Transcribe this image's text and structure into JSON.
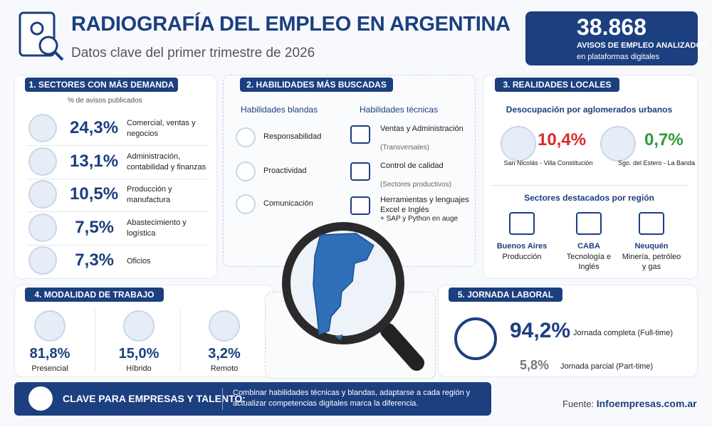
{
  "header": {
    "title": "RADIOGRAFÍA DEL EMPLEO EN ARGENTINA",
    "subtitle": "Datos clave del primer trimestre de 2026"
  },
  "stat": {
    "value": "38.868",
    "label": "AVISOS DE EMPLEO ANALIZADOS",
    "sublabel": "en plataformas digitales"
  },
  "sectors": {
    "title": "1. SECTORES CON MÁS DEMANDA",
    "note": "% de avisos publicados",
    "items": [
      {
        "value": "24,3%",
        "label": "Comercial, ventas y negocios"
      },
      {
        "value": "13,1%",
        "label": "Administración, contabilidad y finanzas"
      },
      {
        "value": "10,5%",
        "label": "Producción y manufactura"
      },
      {
        "value": "7,5%",
        "label": "Abastecimiento y logística"
      },
      {
        "value": "7,3%",
        "label": "Oficios"
      }
    ]
  },
  "skills": {
    "title": "2. HABILIDADES MÁS BUSCADAS",
    "soft": {
      "heading": "Habilidades blandas",
      "items": [
        "Responsabilidad",
        "Proactividad",
        "Comunicación"
      ]
    },
    "technical": {
      "heading": "Habilidades técnicas",
      "items": [
        {
          "label": "Ventas y Administración",
          "note": "(Transversales)"
        },
        {
          "label": "Control de calidad",
          "note": "(Sectores productivos)"
        },
        {
          "label": "Herramientas y lenguajes Excel e Inglés",
          "note": "+ SAP y Python en auge"
        }
      ]
    }
  },
  "local": {
    "title": "3. REALIDADES LOCALES",
    "unemployment": {
      "heading": "Desocupación por aglomerados urbanos",
      "items": [
        {
          "value": "10,4%",
          "place": "San Nicolás - Villa Constitución"
        },
        {
          "value": "0,7%",
          "place": "Sgo. del Estero - La Banda"
        }
      ]
    },
    "regions": {
      "heading": "Sectores destacados por región",
      "items": [
        {
          "region": "Buenos Aires",
          "sector": "Producción"
        },
        {
          "region": "CABA",
          "sector": "Tecnología e Inglés"
        },
        {
          "region": "Neuquén",
          "sector": "Minería, petróleo y gas"
        }
      ]
    }
  },
  "modality": {
    "title": "4. MODALIDAD DE TRABAJO",
    "items": [
      {
        "value": "81,8%",
        "label": "Presencial"
      },
      {
        "value": "15,0%",
        "label": "Híbrido"
      },
      {
        "value": "3,2%",
        "label": "Remoto"
      }
    ]
  },
  "schedule": {
    "title": "5. JORNADA LABORAL",
    "items": [
      {
        "value": "94,2%",
        "label": "Jornada completa (Full-time)"
      },
      {
        "value": "5,8%",
        "label": "Jornada parcial (Part-time)"
      }
    ]
  },
  "footer": {
    "key_title": "CLAVE PARA EMPRESAS Y TALENTO:",
    "key_text": "Combinar habilidades técnicas y blandas, adaptarse a cada región y actualizar competencias digitales marca la diferencia.",
    "source_label": "Fuente:",
    "source": "Infoempresas.com.ar"
  }
}
